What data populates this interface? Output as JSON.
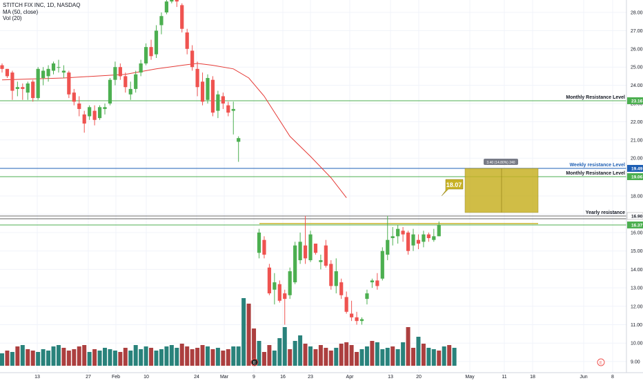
{
  "legend": {
    "symbol": "STITCH FIX INC, 1D, NASDAQ",
    "ma": "MA (50, close)",
    "vol": "Vol (20)"
  },
  "colors": {
    "up": "#26a69a",
    "upBody": "#4caf50",
    "down": "#ef5350",
    "volUp": "#1e7b74",
    "volDown": "#a83535",
    "ma": "#e53935",
    "monthly": "#4caf50",
    "weekly": "#1e5fb4",
    "yearly": "#9e9e9e",
    "projection": "#c8b226",
    "grid": "#f0f3fa"
  },
  "chart_data": {
    "type": "candlestick",
    "y_axis": {
      "ticks": [
        "28.00",
        "27.00",
        "26.00",
        "25.00",
        "24.00",
        "23.00",
        "22.00",
        "21.00",
        "20.00",
        "18.00",
        "17.00",
        "16.00",
        "15.00",
        "14.00",
        "13.00",
        "12.00",
        "11.00",
        "10.00",
        "9.00"
      ],
      "scale": "segmented",
      "upper_range": [
        19.8,
        28.6
      ],
      "lower_range": [
        8.6,
        16.9
      ]
    },
    "x_axis": {
      "ticks": [
        "13",
        "27",
        "Feb",
        "10",
        "24",
        "Mar",
        "9",
        "16",
        "23",
        "Apr",
        "13",
        "20",
        "May",
        "11",
        "18",
        "Jun",
        "8"
      ]
    },
    "candles_upper": [
      {
        "o": 25.1,
        "h": 25.2,
        "l": 24.7,
        "c": 24.9
      },
      {
        "o": 24.9,
        "h": 24.9,
        "l": 24.4,
        "c": 24.5
      },
      {
        "o": 24.7,
        "h": 24.8,
        "l": 23.2,
        "c": 23.7
      },
      {
        "o": 23.8,
        "h": 24.2,
        "l": 23.4,
        "c": 23.9
      },
      {
        "o": 23.9,
        "h": 24.1,
        "l": 23.2,
        "c": 23.8
      },
      {
        "o": 23.6,
        "h": 24.2,
        "l": 23.2,
        "c": 24.1
      },
      {
        "o": 24.2,
        "h": 24.3,
        "l": 23.1,
        "c": 23.3
      },
      {
        "o": 23.3,
        "h": 25.0,
        "l": 23.2,
        "c": 24.9
      },
      {
        "o": 24.4,
        "h": 25.0,
        "l": 24.0,
        "c": 24.8
      },
      {
        "o": 24.5,
        "h": 25.1,
        "l": 24.2,
        "c": 24.9
      },
      {
        "o": 24.8,
        "h": 25.3,
        "l": 24.6,
        "c": 25.2
      },
      {
        "o": 25.0,
        "h": 25.4,
        "l": 24.7,
        "c": 25.0
      },
      {
        "o": 24.7,
        "h": 25.1,
        "l": 24.4,
        "c": 24.8
      },
      {
        "o": 24.7,
        "h": 24.8,
        "l": 23.3,
        "c": 23.5
      },
      {
        "o": 23.6,
        "h": 23.8,
        "l": 22.9,
        "c": 23.1
      },
      {
        "o": 23.0,
        "h": 23.4,
        "l": 22.3,
        "c": 22.7
      },
      {
        "o": 22.4,
        "h": 22.6,
        "l": 21.4,
        "c": 21.9
      },
      {
        "o": 22.3,
        "h": 22.9,
        "l": 22.1,
        "c": 22.8
      },
      {
        "o": 22.6,
        "h": 22.9,
        "l": 21.8,
        "c": 22.1
      },
      {
        "o": 22.2,
        "h": 22.9,
        "l": 22.1,
        "c": 22.8
      },
      {
        "o": 22.7,
        "h": 23.0,
        "l": 22.4,
        "c": 22.8
      },
      {
        "o": 23.0,
        "h": 24.4,
        "l": 22.9,
        "c": 24.3
      },
      {
        "o": 24.3,
        "h": 25.3,
        "l": 24.0,
        "c": 25.0
      },
      {
        "o": 25.0,
        "h": 25.2,
        "l": 24.3,
        "c": 24.5
      },
      {
        "o": 24.5,
        "h": 24.7,
        "l": 23.6,
        "c": 23.9
      },
      {
        "o": 23.5,
        "h": 24.2,
        "l": 23.2,
        "c": 23.8
      },
      {
        "o": 23.8,
        "h": 24.8,
        "l": 23.6,
        "c": 24.6
      },
      {
        "o": 24.7,
        "h": 25.4,
        "l": 24.5,
        "c": 25.2
      },
      {
        "o": 25.2,
        "h": 26.3,
        "l": 25.1,
        "c": 26.1
      },
      {
        "o": 26.1,
        "h": 26.5,
        "l": 25.4,
        "c": 25.6
      },
      {
        "o": 25.7,
        "h": 27.3,
        "l": 25.5,
        "c": 27.0
      },
      {
        "o": 27.3,
        "h": 28.0,
        "l": 26.8,
        "c": 27.8
      },
      {
        "o": 28.0,
        "h": 28.7,
        "l": 27.9,
        "c": 28.6
      },
      {
        "o": 28.6,
        "h": 28.9,
        "l": 28.5,
        "c": 28.8
      },
      {
        "o": 28.9,
        "h": 28.9,
        "l": 28.3,
        "c": 28.6
      },
      {
        "o": 28.4,
        "h": 28.5,
        "l": 26.9,
        "c": 27.1
      },
      {
        "o": 26.9,
        "h": 27.1,
        "l": 25.7,
        "c": 26.0
      },
      {
        "o": 25.9,
        "h": 26.2,
        "l": 24.8,
        "c": 25.0
      },
      {
        "o": 24.9,
        "h": 25.3,
        "l": 23.4,
        "c": 23.9
      },
      {
        "o": 24.2,
        "h": 24.7,
        "l": 22.9,
        "c": 23.1
      },
      {
        "o": 23.2,
        "h": 24.6,
        "l": 23.0,
        "c": 24.4
      },
      {
        "o": 24.3,
        "h": 24.5,
        "l": 22.3,
        "c": 22.5
      },
      {
        "o": 22.6,
        "h": 23.7,
        "l": 22.2,
        "c": 23.5
      },
      {
        "o": 23.4,
        "h": 23.6,
        "l": 22.7,
        "c": 23.0
      },
      {
        "o": 22.9,
        "h": 23.1,
        "l": 22.3,
        "c": 22.5
      },
      {
        "o": 22.6,
        "h": 23.1,
        "l": 21.3,
        "c": 22.7
      },
      {
        "o": 20.9,
        "h": 21.2,
        "l": 19.8,
        "c": 21.1
      }
    ],
    "candles_lower": [
      {
        "o": 14.9,
        "h": 16.2,
        "l": 14.6,
        "c": 16.0
      },
      {
        "o": 15.6,
        "h": 15.8,
        "l": 14.6,
        "c": 14.8
      },
      {
        "o": 14.1,
        "h": 14.3,
        "l": 12.6,
        "c": 12.7
      },
      {
        "o": 12.9,
        "h": 13.8,
        "l": 12.1,
        "c": 13.3
      },
      {
        "o": 13.2,
        "h": 13.4,
        "l": 12.2,
        "c": 12.3
      },
      {
        "o": 12.7,
        "h": 12.9,
        "l": 11.0,
        "c": 12.4
      },
      {
        "o": 12.6,
        "h": 14.1,
        "l": 12.4,
        "c": 13.9
      },
      {
        "o": 13.3,
        "h": 15.5,
        "l": 13.2,
        "c": 15.3
      },
      {
        "o": 14.5,
        "h": 16.0,
        "l": 14.3,
        "c": 15.5
      },
      {
        "o": 15.3,
        "h": 16.9,
        "l": 14.3,
        "c": 14.6
      },
      {
        "o": 14.5,
        "h": 16.1,
        "l": 14.4,
        "c": 15.9
      },
      {
        "o": 15.4,
        "h": 15.4,
        "l": 14.8,
        "c": 14.9
      },
      {
        "o": 14.4,
        "h": 14.8,
        "l": 14.0,
        "c": 14.5
      },
      {
        "o": 15.3,
        "h": 15.6,
        "l": 14.1,
        "c": 14.2
      },
      {
        "o": 14.3,
        "h": 14.5,
        "l": 12.9,
        "c": 13.1
      },
      {
        "o": 13.1,
        "h": 14.6,
        "l": 12.7,
        "c": 13.9
      },
      {
        "o": 13.3,
        "h": 13.5,
        "l": 12.4,
        "c": 12.6
      },
      {
        "o": 12.5,
        "h": 12.8,
        "l": 11.6,
        "c": 11.7
      },
      {
        "o": 11.6,
        "h": 12.3,
        "l": 11.2,
        "c": 11.4
      },
      {
        "o": 11.4,
        "h": 11.7,
        "l": 11.0,
        "c": 11.2
      },
      {
        "o": 11.2,
        "h": 11.4,
        "l": 11.0,
        "c": 11.3
      },
      {
        "o": 12.4,
        "h": 12.9,
        "l": 12.1,
        "c": 12.7
      },
      {
        "o": 13.3,
        "h": 13.5,
        "l": 13.0,
        "c": 13.4
      },
      {
        "o": 13.4,
        "h": 13.8,
        "l": 12.9,
        "c": 13.1
      },
      {
        "o": 13.5,
        "h": 15.2,
        "l": 13.4,
        "c": 15.0
      },
      {
        "o": 14.8,
        "h": 16.9,
        "l": 14.5,
        "c": 15.6
      },
      {
        "o": 15.7,
        "h": 16.3,
        "l": 15.3,
        "c": 15.8
      },
      {
        "o": 15.8,
        "h": 16.4,
        "l": 15.4,
        "c": 16.2
      },
      {
        "o": 16.1,
        "h": 16.3,
        "l": 15.5,
        "c": 15.9
      },
      {
        "o": 16.0,
        "h": 16.1,
        "l": 14.8,
        "c": 15.0
      },
      {
        "o": 15.3,
        "h": 16.2,
        "l": 15.0,
        "c": 15.9
      },
      {
        "o": 15.6,
        "h": 15.9,
        "l": 15.1,
        "c": 15.4
      },
      {
        "o": 15.5,
        "h": 16.1,
        "l": 15.2,
        "c": 15.9
      },
      {
        "o": 15.9,
        "h": 16.0,
        "l": 15.5,
        "c": 15.7
      },
      {
        "o": 15.6,
        "h": 16.2,
        "l": 15.5,
        "c": 15.8
      },
      {
        "o": 15.8,
        "h": 16.6,
        "l": 15.8,
        "c": 16.4
      }
    ],
    "volume": [
      18,
      22,
      20,
      28,
      30,
      24,
      22,
      20,
      24,
      22,
      28,
      30,
      26,
      22,
      24,
      28,
      30,
      20,
      24,
      22,
      26,
      24,
      22,
      20,
      26,
      22,
      30,
      24,
      28,
      26,
      22,
      24,
      28,
      30,
      26,
      32,
      28,
      24,
      26,
      30,
      28,
      24,
      26,
      22,
      24,
      28,
      28,
      98,
      90,
      54,
      36,
      20,
      30,
      22,
      40,
      56,
      24,
      36,
      44,
      32,
      28,
      24,
      30,
      26,
      22,
      26,
      32,
      34,
      30,
      20,
      24,
      28,
      36,
      34,
      24,
      26,
      28,
      24,
      34,
      56,
      26,
      42,
      32,
      26,
      24,
      22,
      28,
      30,
      26
    ],
    "volume_up": [
      1,
      0,
      1,
      0,
      1,
      0,
      0,
      1,
      1,
      1,
      1,
      1,
      0,
      0,
      0,
      0,
      0,
      1,
      0,
      1,
      1,
      1,
      1,
      0,
      0,
      1,
      1,
      1,
      1,
      0,
      1,
      1,
      1,
      1,
      1,
      0,
      0,
      0,
      0,
      0,
      1,
      0,
      1,
      0,
      0,
      1,
      1,
      1,
      0,
      0,
      1,
      0,
      0,
      1,
      1,
      1,
      0,
      1,
      1,
      0,
      1,
      0,
      0,
      0,
      0,
      1,
      0,
      0,
      0,
      0,
      1,
      1,
      0,
      1,
      1,
      1,
      0,
      1,
      1,
      0,
      0,
      1,
      0,
      1,
      1,
      0,
      1,
      0,
      1
    ],
    "ma50": [
      [
        0,
        24.3
      ],
      [
        12,
        24.4
      ],
      [
        24,
        24.6
      ],
      [
        30,
        24.9
      ],
      [
        35,
        25.1
      ],
      [
        38,
        25.2
      ],
      [
        41,
        25.1
      ],
      [
        45,
        24.9
      ],
      [
        48,
        24.4
      ],
      [
        51,
        23.4
      ],
      [
        56,
        21.2
      ],
      [
        60,
        20.1
      ],
      [
        64,
        19.0
      ],
      [
        67,
        17.9
      ]
    ],
    "levels": [
      {
        "label": "Monthly Resistance Level",
        "value": "23.16",
        "kind": "monthly"
      },
      {
        "label": "Weekly resistance Level",
        "value": "19.49",
        "kind": "weekly"
      },
      {
        "label": "Monthly Resistance Level",
        "value": "19.06",
        "kind": "monthly"
      },
      {
        "label": "Yearly resistance",
        "value": "16.90",
        "kind": "yearly"
      },
      {
        "label": "",
        "value": "16.37",
        "kind": "last"
      }
    ],
    "projection": {
      "label": "3.40 (14.80%) 240",
      "price_label": "18.07"
    },
    "events": [
      "E",
      "E"
    ]
  }
}
